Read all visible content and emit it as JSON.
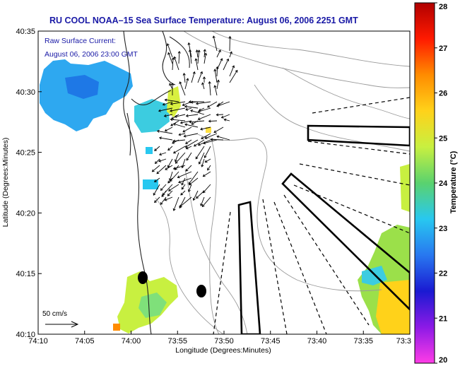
{
  "title": "RU COOL  NOAA–15  Sea Surface Temperature:  August 06, 2006 2251 GMT",
  "annotation": {
    "line1": "Raw Surface Current:",
    "line2": "August 06, 2006 23:00 GMT"
  },
  "scale_label": "50 cm/s",
  "axes": {
    "xlabel": "Longitude (Degrees:Minutes)",
    "ylabel": "Latitude (Degrees:Minutes)",
    "xticks": [
      "74:10",
      "74:05",
      "74:00",
      "73:55",
      "73:50",
      "73:45",
      "73:40",
      "73:35",
      "73:3"
    ],
    "yticks": [
      "40:35",
      "40:30",
      "40:25",
      "40:20",
      "40:15",
      "40:10"
    ]
  },
  "colorbar": {
    "label": "Temperature (°C)",
    "min": 20,
    "max": 28,
    "ticks": [
      "28",
      "27",
      "26",
      "25",
      "24",
      "23",
      "22",
      "21",
      "20"
    ],
    "colors": [
      "#b00000",
      "#ff1a00",
      "#ff8c00",
      "#ffd21a",
      "#c8f040",
      "#5ad26e",
      "#28c8f0",
      "#2878f0",
      "#1a1ad2",
      "#8c1ae6",
      "#ff3ce6"
    ]
  },
  "sst_patches": [
    {
      "name": "sst-patch-north",
      "color": "#1e8ceb"
    },
    {
      "name": "sst-patch-south-east",
      "color": "#ffd21a"
    },
    {
      "name": "sst-patch-south-west",
      "color": "#c8f040"
    }
  ]
}
